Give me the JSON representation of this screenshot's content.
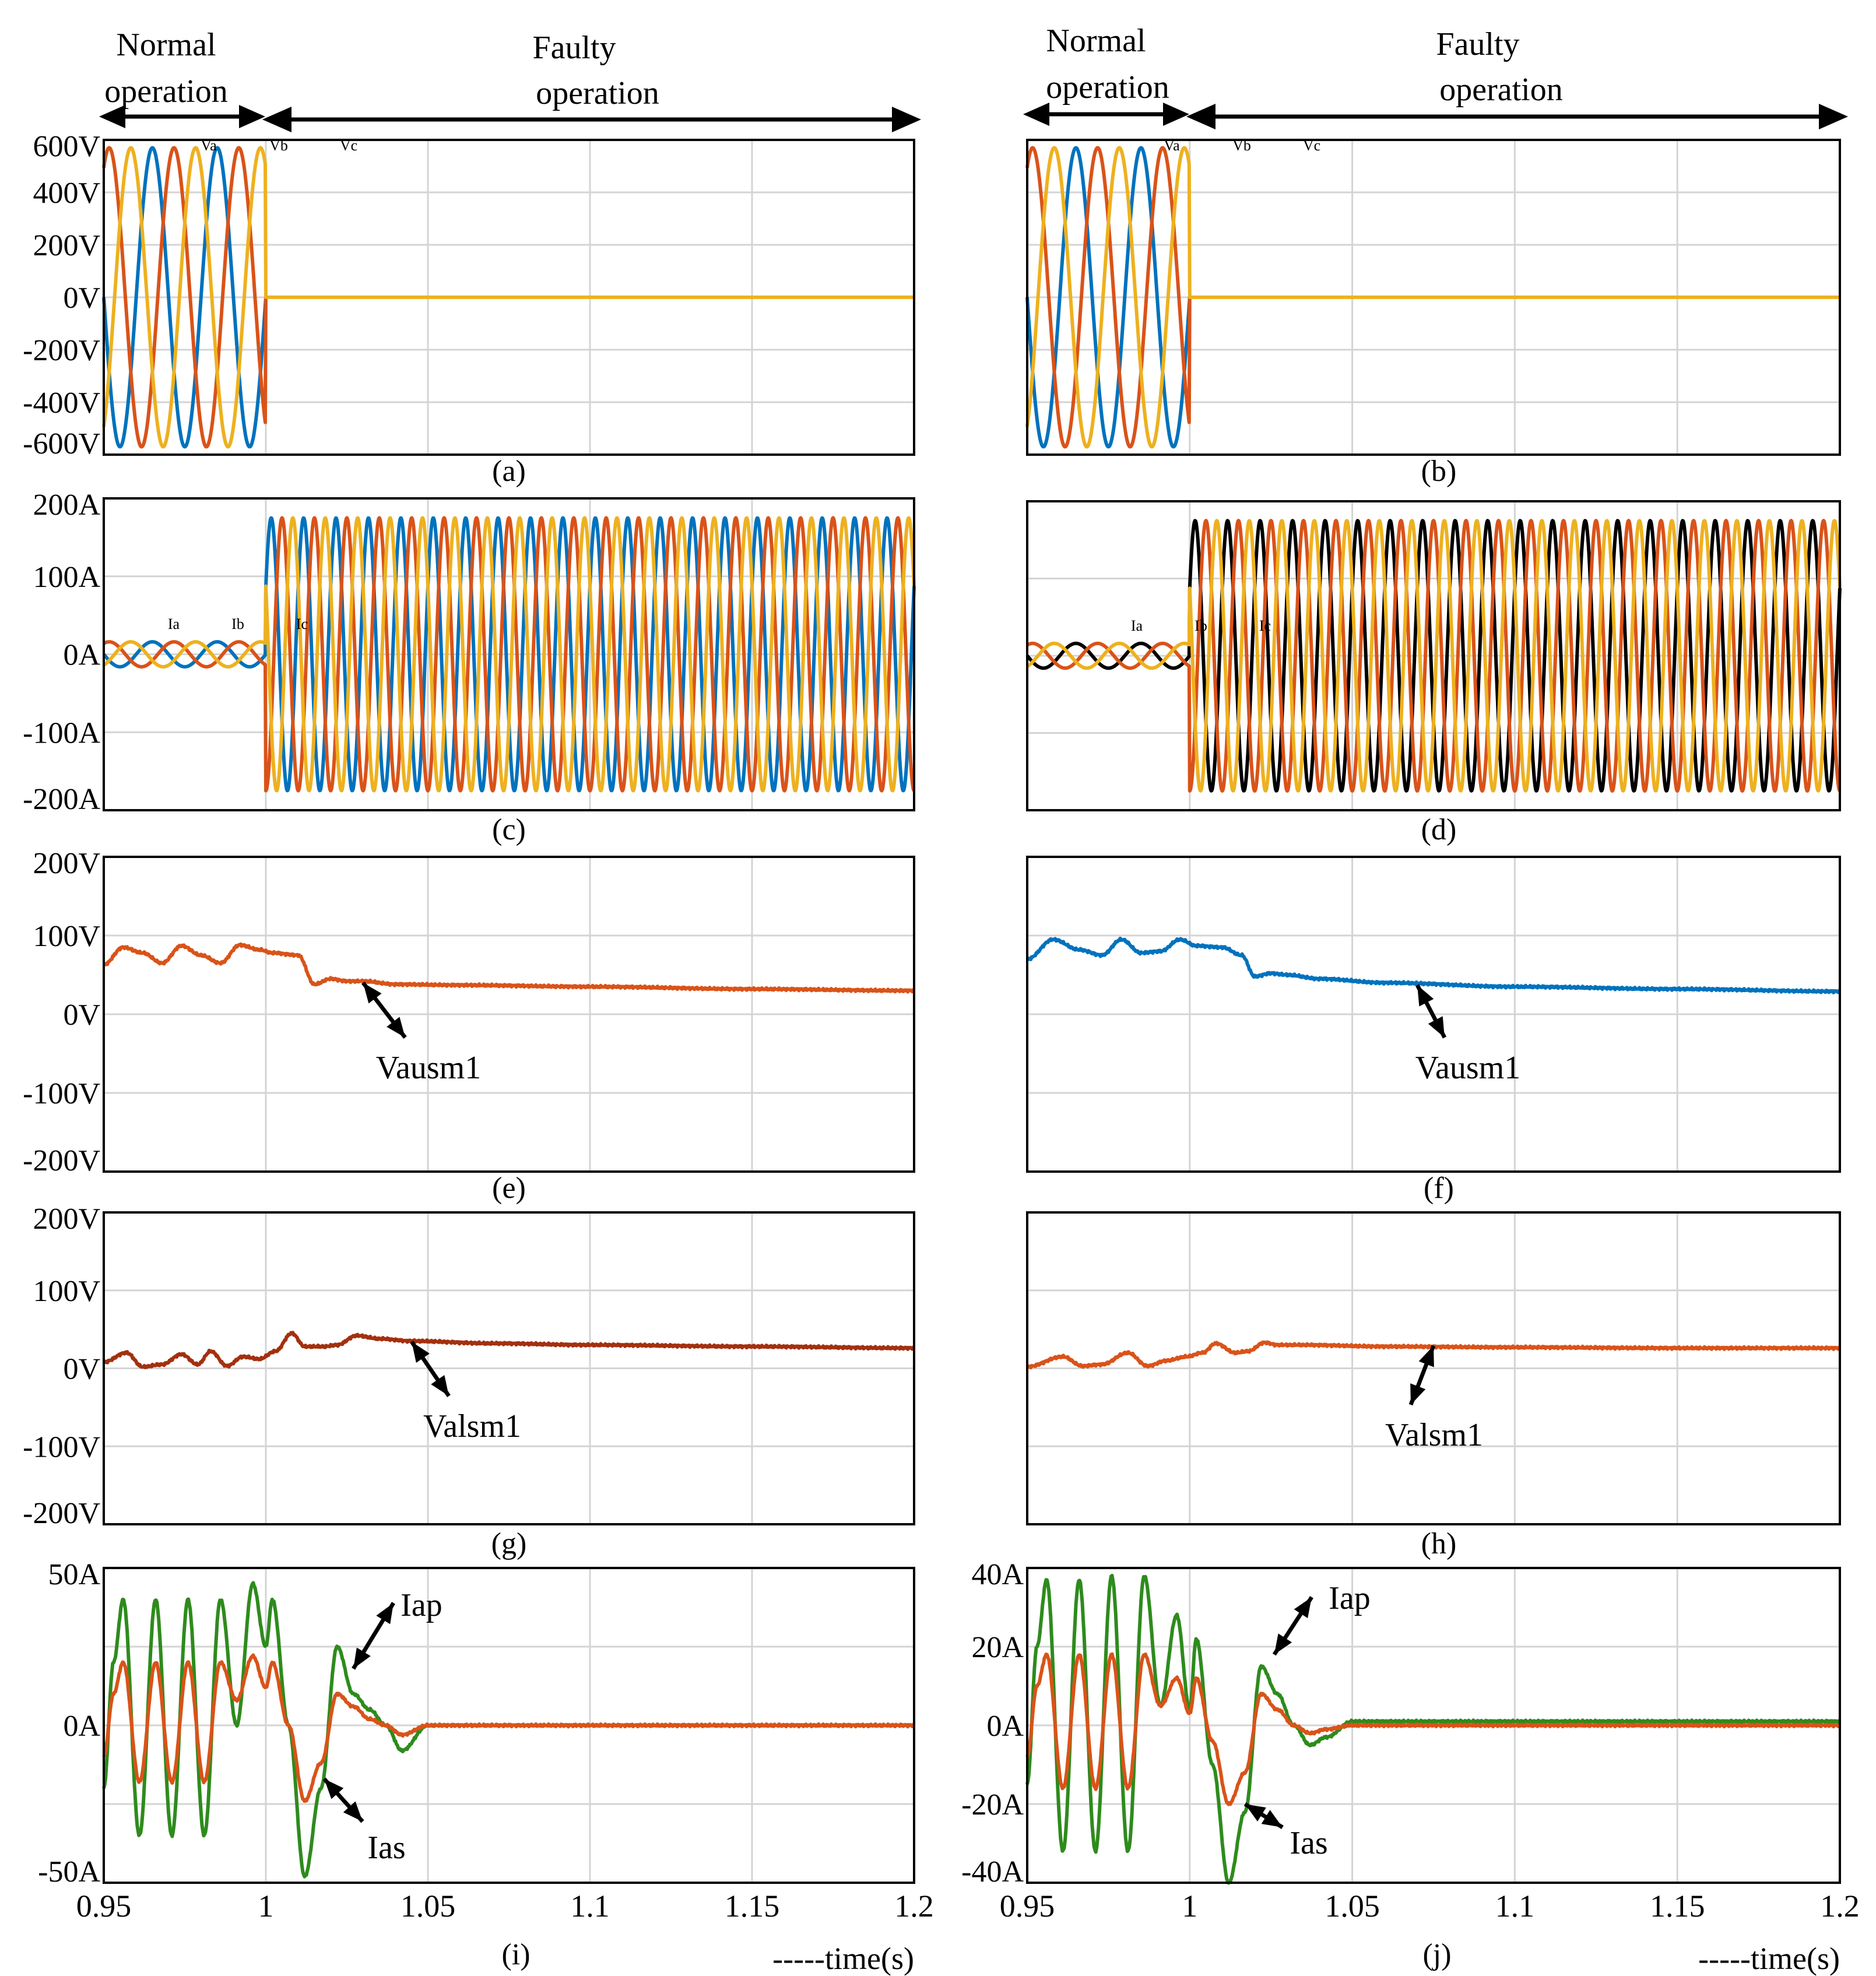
{
  "header": {
    "left": {
      "normal": [
        "Normal",
        "operation"
      ],
      "faulty": [
        "Faulty",
        "operation"
      ]
    },
    "right": {
      "normal": [
        "Normal",
        "operation"
      ],
      "faulty": [
        "Faulty",
        "operation"
      ]
    }
  },
  "colors": {
    "blue": "#0072bd",
    "orange": "#d95319",
    "yellow": "#edb120",
    "green": "#2e8b1d",
    "black": "#000000",
    "darkred": "#a3300f"
  },
  "chart_data": [
    {
      "id": "a",
      "label": "(a)",
      "type": "line",
      "xlim": [
        0.95,
        1.2
      ],
      "ylim": [
        -600,
        600
      ],
      "yticks": [
        600,
        400,
        200,
        0,
        -200,
        -400,
        -600
      ],
      "ytick_labels": [
        "600V",
        "400V",
        "200V",
        "0V",
        "-200V",
        "-400V",
        "-600V"
      ],
      "series": [
        {
          "name": "Va",
          "phase": 0,
          "color": "blue",
          "pre_amp": 570,
          "post_amp": 0,
          "freq": 50
        },
        {
          "name": "Vb",
          "phase": -120,
          "color": "orange",
          "pre_amp": 570,
          "post_amp": 0,
          "freq": 50
        },
        {
          "name": "Vc",
          "phase": 120,
          "color": "yellow",
          "pre_amp": 570,
          "post_amp": 0,
          "freq": 50
        }
      ],
      "fault_time": 1.0
    },
    {
      "id": "b",
      "label": "(b)",
      "type": "line",
      "xlim": [
        0.95,
        1.2
      ],
      "ylim": [
        -600,
        600
      ],
      "yticks": [],
      "ytick_labels": [],
      "series": [
        {
          "name": "Va",
          "phase": 0,
          "color": "blue",
          "pre_amp": 570,
          "post_amp": 0,
          "freq": 50
        },
        {
          "name": "Vb",
          "phase": -120,
          "color": "orange",
          "pre_amp": 570,
          "post_amp": 0,
          "freq": 50
        },
        {
          "name": "Vc",
          "phase": 120,
          "color": "yellow",
          "pre_amp": 570,
          "post_amp": 0,
          "freq": 50
        }
      ],
      "fault_time": 1.0
    },
    {
      "id": "c",
      "label": "(c)",
      "type": "line",
      "xlim": [
        0.95,
        1.2
      ],
      "ylim": [
        -200,
        200
      ],
      "yticks": [
        200,
        100,
        0,
        -100,
        -200
      ],
      "ytick_labels": [
        "200A",
        "100A",
        "0A",
        "-100A",
        "-200A"
      ],
      "series": [
        {
          "name": "Ia",
          "phase": 0,
          "color": "blue",
          "pre_amp": 16,
          "post_amp": 175,
          "freq": 100
        },
        {
          "name": "Ib",
          "phase": -120,
          "color": "orange",
          "pre_amp": 16,
          "post_amp": 175,
          "freq": 100
        },
        {
          "name": "Ic",
          "phase": 120,
          "color": "yellow",
          "pre_amp": 16,
          "post_amp": 175,
          "freq": 100
        }
      ],
      "fault_time": 1.0
    },
    {
      "id": "d",
      "label": "(d)",
      "type": "line",
      "xlim": [
        0.95,
        1.2
      ],
      "ylim": [
        -200,
        200
      ],
      "yticks": [],
      "ytick_labels": [],
      "series": [
        {
          "name": "Ia",
          "phase": 0,
          "color": "black",
          "pre_amp": 16,
          "post_amp": 175,
          "freq": 100
        },
        {
          "name": "Ib",
          "phase": -120,
          "color": "orange",
          "pre_amp": 16,
          "post_amp": 175,
          "freq": 100
        },
        {
          "name": "Ic",
          "phase": 120,
          "color": "yellow",
          "pre_amp": 16,
          "post_amp": 175,
          "freq": 100
        }
      ],
      "fault_time": 1.0
    },
    {
      "id": "e",
      "label": "(e)",
      "type": "line",
      "xlim": [
        0.95,
        1.2
      ],
      "ylim": [
        -200,
        200
      ],
      "yticks": [
        200,
        100,
        0,
        -100,
        -200
      ],
      "ytick_labels": [
        "200V",
        "100V",
        "0V",
        "-100V",
        "-200V"
      ],
      "series": [
        {
          "name": "Vausm1",
          "color": "orange",
          "x": [
            0.95,
            0.956,
            0.962,
            0.968,
            0.974,
            0.98,
            0.986,
            0.992,
            0.998,
            1.002,
            1.01,
            1.015,
            1.02,
            1.025,
            1.03,
            1.04,
            1.06,
            1.1,
            1.15,
            1.2
          ],
          "y": [
            63,
            85,
            78,
            65,
            87,
            75,
            65,
            88,
            82,
            78,
            75,
            38,
            45,
            42,
            42,
            38,
            37,
            35,
            32,
            30
          ]
        }
      ],
      "arrow_label": "Vausm1"
    },
    {
      "id": "f",
      "label": "(f)",
      "type": "line",
      "xlim": [
        0.95,
        1.2
      ],
      "ylim": [
        -200,
        200
      ],
      "yticks": [],
      "ytick_labels": [],
      "series": [
        {
          "name": "Vausm1",
          "color": "blue",
          "x": [
            0.95,
            0.958,
            0.966,
            0.973,
            0.979,
            0.985,
            0.991,
            0.997,
            1.002,
            1.01,
            1.016,
            1.02,
            1.025,
            1.03,
            1.04,
            1.06,
            1.1,
            1.15,
            1.2
          ],
          "y": [
            70,
            95,
            82,
            75,
            95,
            78,
            80,
            95,
            87,
            85,
            75,
            48,
            52,
            50,
            45,
            40,
            35,
            32,
            29
          ]
        }
      ],
      "arrow_label": "Vausm1"
    },
    {
      "id": "g",
      "label": "(g)",
      "type": "line",
      "xlim": [
        0.95,
        1.2
      ],
      "ylim": [
        -200,
        200
      ],
      "yticks": [
        200,
        100,
        0,
        -100,
        -200
      ],
      "ytick_labels": [
        "200V",
        "100V",
        "0V",
        "-100V",
        "-200V"
      ],
      "series": [
        {
          "name": "Valsm1",
          "color": "darkred",
          "x": [
            0.95,
            0.957,
            0.962,
            0.968,
            0.974,
            0.979,
            0.983,
            0.988,
            0.993,
            0.998,
            1.003,
            1.008,
            1.012,
            1.018,
            1.022,
            1.028,
            1.035,
            1.045,
            1.07,
            1.1,
            1.15,
            1.2
          ],
          "y": [
            8,
            20,
            2,
            5,
            18,
            5,
            22,
            3,
            15,
            12,
            22,
            45,
            28,
            28,
            30,
            42,
            38,
            35,
            32,
            30,
            28,
            26
          ]
        }
      ],
      "arrow_label": "Valsm1"
    },
    {
      "id": "h",
      "label": "(h)",
      "type": "line",
      "xlim": [
        0.95,
        1.2
      ],
      "ylim": [
        -200,
        200
      ],
      "yticks": [],
      "ytick_labels": [],
      "series": [
        {
          "name": "Valsm1",
          "color": "orange",
          "x": [
            0.95,
            0.961,
            0.967,
            0.973,
            0.981,
            0.987,
            0.993,
            0.999,
            1.004,
            1.008,
            1.014,
            1.018,
            1.023,
            1.027,
            1.035,
            1.06,
            1.1,
            1.15,
            1.2
          ],
          "y": [
            2,
            15,
            3,
            5,
            20,
            3,
            10,
            15,
            20,
            32,
            20,
            22,
            33,
            30,
            30,
            28,
            27,
            26,
            26
          ]
        }
      ],
      "arrow_label": "Valsm1"
    },
    {
      "id": "i",
      "label": "(i)",
      "type": "line",
      "xlim": [
        0.95,
        1.2
      ],
      "ylim": [
        -50,
        50
      ],
      "yticks": [
        50,
        0,
        -50
      ],
      "ytick_labels": [
        "50A",
        "0A",
        "-50A"
      ],
      "xticks": [
        0.95,
        1.0,
        1.05,
        1.1,
        1.15,
        1.2
      ],
      "xtick_labels": [
        "0.95",
        "1",
        "1.05",
        "1.1",
        "1.15",
        "1.2"
      ],
      "xlabel": "-----time(s)",
      "series": [
        {
          "name": "Iap",
          "color": "green",
          "x": [
            0.95,
            0.953,
            0.956,
            0.961,
            0.966,
            0.971,
            0.976,
            0.981,
            0.986,
            0.991,
            0.996,
            1.0,
            1.002,
            1.007,
            1.012,
            1.017,
            1.022,
            1.027,
            1.032,
            1.037,
            1.042,
            1.05,
            1.07,
            1.1,
            1.15,
            1.2
          ],
          "y": [
            -20,
            20,
            40,
            -35,
            40,
            -35,
            40,
            -35,
            40,
            0,
            45,
            25,
            40,
            0,
            -48,
            -20,
            25,
            10,
            5,
            0,
            -8,
            0,
            0,
            0,
            0,
            0
          ]
        },
        {
          "name": "Ias",
          "color": "orange",
          "x": [
            0.95,
            0.953,
            0.956,
            0.961,
            0.966,
            0.971,
            0.976,
            0.981,
            0.986,
            0.991,
            0.996,
            1.0,
            1.002,
            1.007,
            1.012,
            1.017,
            1.022,
            1.027,
            1.032,
            1.037,
            1.042,
            1.05,
            1.07,
            1.1,
            1.15,
            1.2
          ],
          "y": [
            -10,
            10,
            20,
            -18,
            20,
            -18,
            20,
            -18,
            20,
            8,
            22,
            12,
            20,
            0,
            -24,
            -12,
            10,
            6,
            2,
            0,
            -3,
            0,
            0,
            0,
            0,
            0
          ]
        }
      ],
      "arrow_labels": [
        "Iap",
        "Ias"
      ]
    },
    {
      "id": "j",
      "label": "(j)",
      "type": "line",
      "xlim": [
        0.95,
        1.2
      ],
      "ylim": [
        -40,
        40
      ],
      "yticks": [
        40,
        20,
        0,
        -20,
        -40
      ],
      "ytick_labels": [
        "40A",
        "20A",
        "0A",
        "-20A",
        "-40A"
      ],
      "xticks": [
        0.95,
        1.0,
        1.05,
        1.1,
        1.15,
        1.2
      ],
      "xtick_labels": [
        "0.95",
        "1",
        "1.05",
        "1.1",
        "1.15",
        "1.2"
      ],
      "xlabel": "-----time(s)",
      "series": [
        {
          "name": "Iap",
          "color": "green",
          "x": [
            0.95,
            0.953,
            0.956,
            0.961,
            0.966,
            0.971,
            0.976,
            0.981,
            0.986,
            0.991,
            0.996,
            1.0,
            1.002,
            1.007,
            1.012,
            1.017,
            1.022,
            1.027,
            1.032,
            1.037,
            1.042,
            1.05,
            1.07,
            1.1,
            1.15,
            1.2
          ],
          "y": [
            -15,
            20,
            37,
            -32,
            37,
            -32,
            38,
            -32,
            38,
            5,
            28,
            4,
            22,
            -10,
            -40,
            -22,
            15,
            8,
            0,
            -5,
            -3,
            1,
            1,
            1,
            1,
            1
          ]
        },
        {
          "name": "Ias",
          "color": "orange",
          "x": [
            0.95,
            0.953,
            0.956,
            0.961,
            0.966,
            0.971,
            0.976,
            0.981,
            0.986,
            0.991,
            0.996,
            1.0,
            1.002,
            1.007,
            1.012,
            1.017,
            1.022,
            1.027,
            1.032,
            1.037,
            1.042,
            1.05,
            1.07,
            1.1,
            1.15,
            1.2
          ],
          "y": [
            -8,
            10,
            18,
            -16,
            18,
            -16,
            18,
            -16,
            18,
            5,
            12,
            3,
            12,
            -4,
            -20,
            -12,
            8,
            4,
            0,
            -2,
            -1,
            0,
            0,
            0,
            0,
            0
          ]
        }
      ],
      "arrow_labels": [
        "Iap",
        "Ias"
      ]
    }
  ]
}
